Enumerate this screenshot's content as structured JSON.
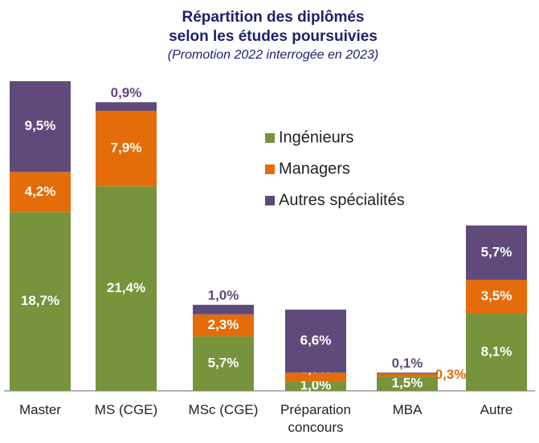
{
  "chart_data": {
    "type": "stacked_bar",
    "title": [
      "Répartition des diplômés",
      "selon les études poursuivies"
    ],
    "subtitle": "(Promotion 2022 interrogée en 2023)",
    "categories": [
      "Master",
      "MS (CGE)",
      "MSc (CGE)",
      "Préparation concours",
      "MBA",
      "Autre"
    ],
    "series": [
      {
        "name": "Ingénieurs",
        "color": "#77933c",
        "values": [
          18.7,
          21.4,
          5.7,
          1.0,
          1.5,
          8.1
        ],
        "value_labels": [
          "18,7%",
          "21,4%",
          "5,7%",
          "1,0%",
          "1,5%",
          "8,1%"
        ]
      },
      {
        "name": "Managers",
        "color": "#e46c0a",
        "values": [
          4.2,
          7.9,
          2.3,
          0.9,
          0.3,
          3.5
        ],
        "value_labels": [
          "4,2%",
          "7,9%",
          "2,3%",
          "0,9%",
          "0,3%",
          "3,5%"
        ]
      },
      {
        "name": "Autres spécialités",
        "color": "#604a7b",
        "values": [
          9.5,
          0.9,
          1.0,
          6.6,
          0.1,
          5.7
        ],
        "value_labels": [
          "9,5%",
          "0,9%",
          "1,0%",
          "6,6%",
          "0,1%",
          "5,7%"
        ]
      }
    ],
    "ylim": [
      0,
      33
    ]
  }
}
